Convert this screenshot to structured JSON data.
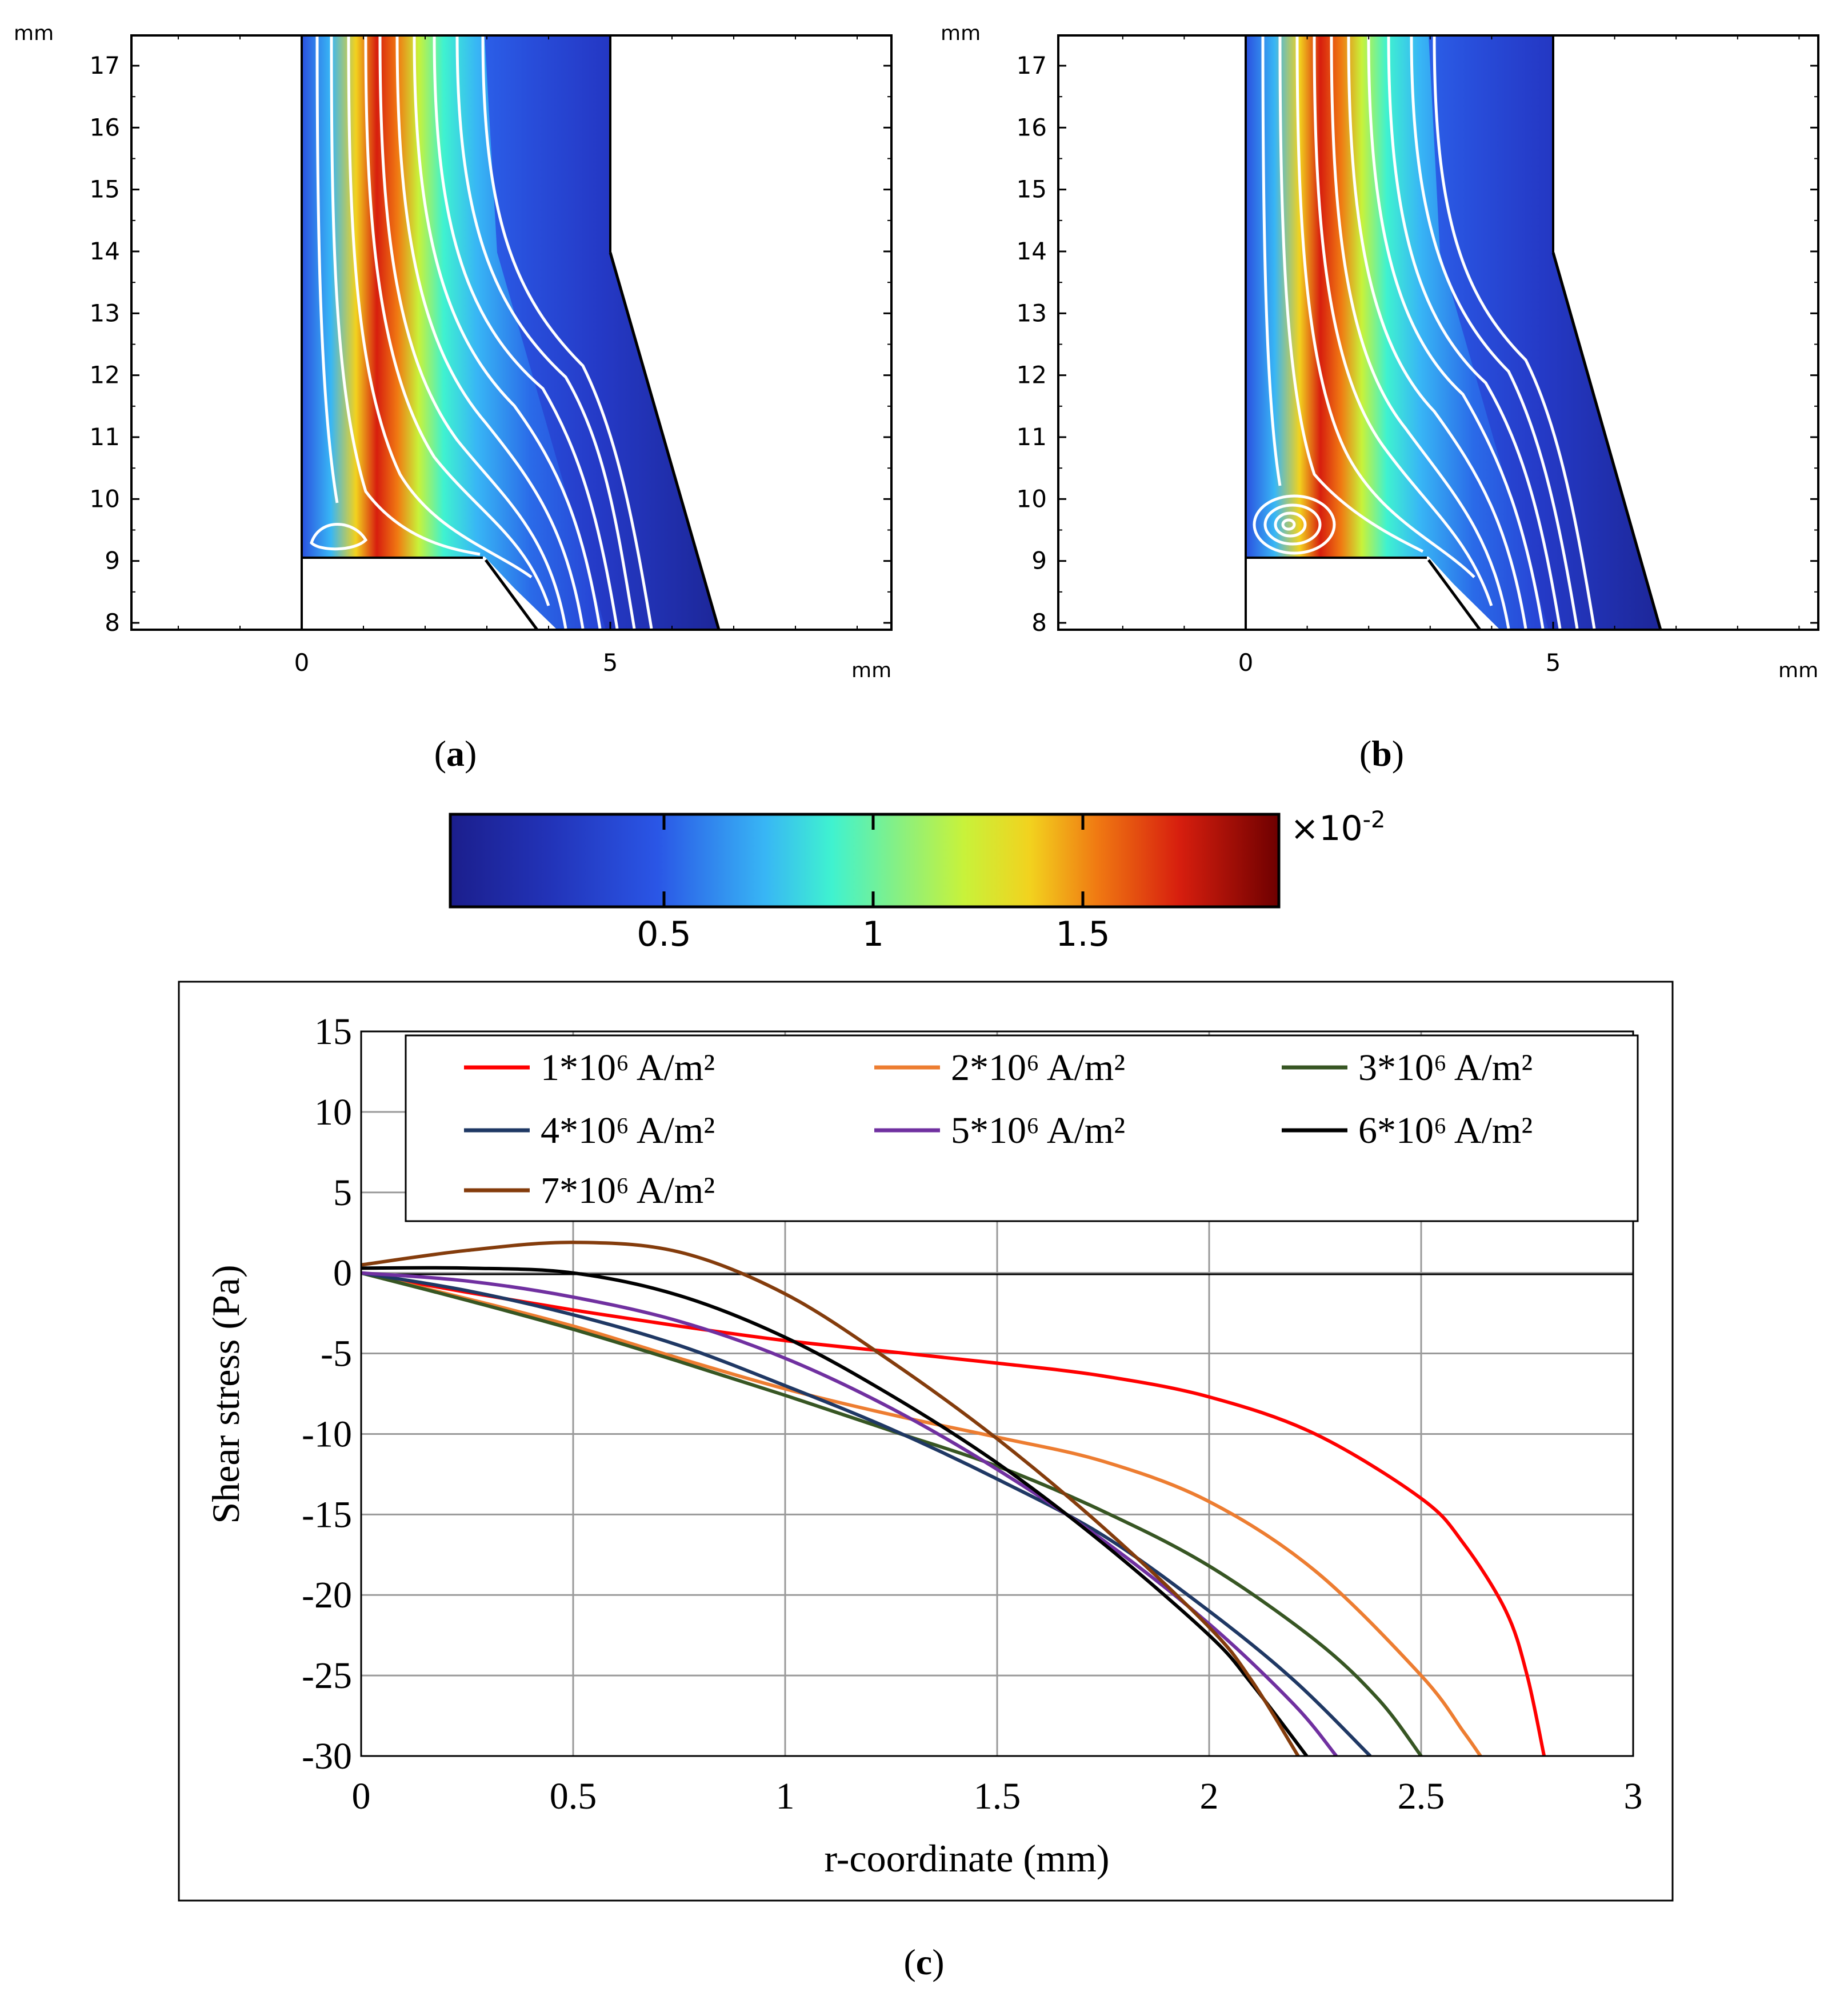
{
  "panel_a": {
    "y_unit": "mm",
    "x_unit": "mm",
    "y_ticks": [
      "17",
      "16",
      "15",
      "14",
      "13",
      "12",
      "11",
      "10",
      "9",
      "8"
    ],
    "x_ticks": [
      "0",
      "5"
    ],
    "caption_letter": "a"
  },
  "panel_b": {
    "y_unit": "mm",
    "x_unit": "mm",
    "y_ticks": [
      "17",
      "16",
      "15",
      "14",
      "13",
      "12",
      "11",
      "10",
      "9",
      "8"
    ],
    "x_ticks": [
      "0",
      "5"
    ],
    "caption_letter": "b"
  },
  "colorbar": {
    "ticks": [
      "0.5",
      "1",
      "1.5"
    ],
    "multiplier": "×10",
    "exponent": "-2",
    "colors": [
      "#1b1e8c",
      "#2a4fe0",
      "#38b6f5",
      "#3ff2d0",
      "#b8f23a",
      "#f2d21e",
      "#f07a12",
      "#d71e0e",
      "#6e0000"
    ]
  },
  "chart_data": {
    "type": "line",
    "title": "",
    "xlabel": "r-coordinate (mm)",
    "ylabel": "Shear stress (Pa)",
    "xlim": [
      0,
      3
    ],
    "ylim": [
      -30,
      15
    ],
    "x_ticks": [
      "0",
      "0.5",
      "1",
      "1.5",
      "2",
      "2.5",
      "3"
    ],
    "y_ticks": [
      "15",
      "10",
      "5",
      "0",
      "-5",
      "-10",
      "-15",
      "-20",
      "-25",
      "-30"
    ],
    "grid": true,
    "legend_position": "top",
    "caption_letter": "c",
    "series": [
      {
        "name": "1*10⁶ A/m²",
        "color": "#ff0000",
        "x": [
          0,
          0.25,
          0.5,
          0.75,
          1,
          1.25,
          1.5,
          1.75,
          2,
          2.25,
          2.5,
          2.6,
          2.7,
          2.75,
          2.79
        ],
        "y": [
          0,
          -1.2,
          -2.3,
          -3.3,
          -4.2,
          -4.9,
          -5.6,
          -6.4,
          -7.7,
          -10.0,
          -14.0,
          -16.8,
          -21.0,
          -25.0,
          -30.0
        ]
      },
      {
        "name": "2*10⁶ A/m²",
        "color": "#ed7d31",
        "x": [
          0,
          0.25,
          0.5,
          0.75,
          1,
          1.25,
          1.5,
          1.75,
          2,
          2.25,
          2.5,
          2.6,
          2.64
        ],
        "y": [
          0,
          -1.6,
          -3.3,
          -5.3,
          -7.2,
          -8.8,
          -10.2,
          -11.7,
          -14.2,
          -18.5,
          -25.0,
          -28.5,
          -30.0
        ]
      },
      {
        "name": "3*10⁶ A/m²",
        "color": "#375623",
        "x": [
          0,
          0.25,
          0.5,
          0.75,
          1,
          1.25,
          1.5,
          1.75,
          2,
          2.25,
          2.4,
          2.5
        ],
        "y": [
          0,
          -1.7,
          -3.5,
          -5.5,
          -7.6,
          -9.8,
          -12.0,
          -14.8,
          -18.2,
          -22.8,
          -26.5,
          -30.0
        ]
      },
      {
        "name": "4*10⁶ A/m²",
        "color": "#1f3864",
        "x": [
          0,
          0.25,
          0.5,
          0.75,
          1,
          1.25,
          1.5,
          1.75,
          2,
          2.2,
          2.38
        ],
        "y": [
          0,
          -1.1,
          -2.6,
          -4.5,
          -7.0,
          -9.7,
          -12.8,
          -16.3,
          -21.0,
          -25.3,
          -30.0
        ]
      },
      {
        "name": "5*10⁶ A/m²",
        "color": "#7030a0",
        "x": [
          0,
          0.25,
          0.5,
          0.75,
          1,
          1.25,
          1.5,
          1.75,
          2,
          2.2,
          2.3
        ],
        "y": [
          0,
          -0.5,
          -1.5,
          -3.0,
          -5.3,
          -8.4,
          -12.2,
          -16.6,
          -21.8,
          -26.8,
          -30.0
        ]
      },
      {
        "name": "6*10⁶ A/m²",
        "color": "#000000",
        "x": [
          0,
          0.25,
          0.5,
          0.75,
          1,
          1.25,
          1.5,
          1.75,
          2,
          2.1,
          2.23
        ],
        "y": [
          0.3,
          0.3,
          0,
          -1.4,
          -4.0,
          -7.6,
          -11.8,
          -16.8,
          -22.5,
          -25.5,
          -30.0
        ]
      },
      {
        "name": "7*10⁶ A/m²",
        "color": "#843c0c",
        "x": [
          0,
          0.25,
          0.5,
          0.75,
          1,
          1.25,
          1.5,
          1.75,
          2,
          2.1,
          2.21
        ],
        "y": [
          0.5,
          1.4,
          1.9,
          1.3,
          -1.3,
          -5.5,
          -10.3,
          -15.8,
          -22.0,
          -25.3,
          -30.0
        ]
      }
    ]
  }
}
